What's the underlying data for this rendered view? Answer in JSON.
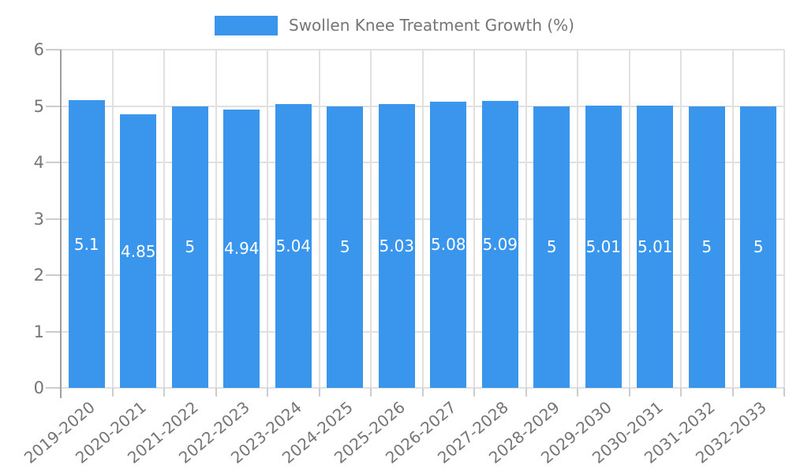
{
  "chart_data": {
    "type": "bar",
    "title": "Swollen Knee Treatment Growth (%)",
    "categories": [
      "2019-2020",
      "2020-2021",
      "2021-2022",
      "2022-2023",
      "2023-2024",
      "2024-2025",
      "2025-2026",
      "2026-2027",
      "2027-2028",
      "2028-2029",
      "2029-2030",
      "2030-2031",
      "2031-2032",
      "2032-2033"
    ],
    "series": [
      {
        "name": "Swollen Knee Treatment Growth (%)",
        "values": [
          5.1,
          4.85,
          5,
          4.94,
          5.04,
          5,
          5.03,
          5.08,
          5.09,
          5,
          5.01,
          5.01,
          5,
          5
        ]
      }
    ],
    "bar_labels": [
      "5.1",
      "4.85",
      "5",
      "4.94",
      "5.04",
      "5",
      "5.03",
      "5.08",
      "5.09",
      "5",
      "5.01",
      "5.01",
      "5",
      "5"
    ],
    "xlabel": "",
    "ylabel": "",
    "ylim": [
      0,
      6
    ],
    "yticks": [
      0,
      1,
      2,
      3,
      4,
      5,
      6
    ],
    "ytick_labels": [
      "0",
      "1",
      "2",
      "3",
      "4",
      "5",
      "6"
    ],
    "grid": true,
    "legend_position": "top-center",
    "colors": {
      "bar": "#3996EC",
      "bar_label_text": "#FFFFFF",
      "grid_line": "#E0E0E0",
      "axis_line": "#9E9E9E",
      "tick_mark": "#CCCCCC",
      "axis_text": "#757575",
      "background": "#FFFFFF"
    }
  }
}
